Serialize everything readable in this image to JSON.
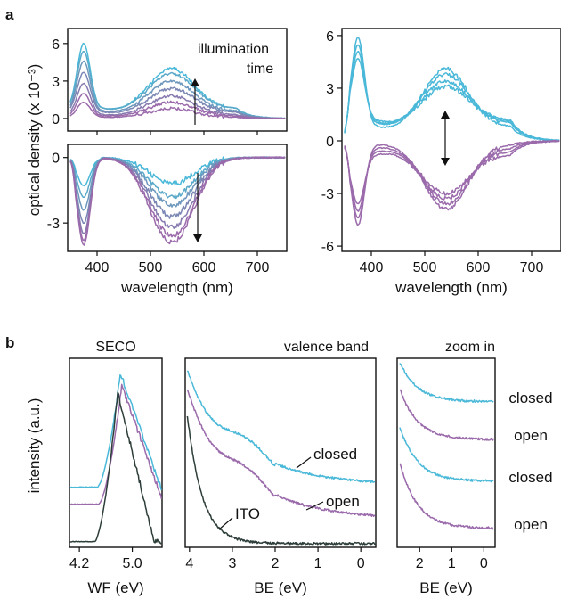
{
  "panel_labels": {
    "a": "a",
    "b": "b"
  },
  "colors": {
    "cyan": "#4ab8d8",
    "purple": "#9a6aab",
    "dark": "#2d3e3a",
    "mix": [
      "#4ab8d8",
      "#5aa9c9",
      "#6d97bc",
      "#7a86b4",
      "#877aaf",
      "#9a6aab"
    ]
  },
  "chart_data": [
    {
      "id": "a-top-left",
      "type": "line",
      "ylabel": "optical density (x 10⁻³)",
      "xlabel": "",
      "xlim": [
        345,
        755
      ],
      "ylim": [
        -1.0,
        7.2
      ],
      "xticks": [
        400,
        500,
        600,
        700
      ],
      "yticks": [
        0,
        3,
        6
      ],
      "annotation": {
        "line1": "illumination",
        "line2": "time",
        "arrow": "up"
      },
      "series": [
        {
          "peak": 6.0,
          "band": 4.0,
          "base": 0.8
        },
        {
          "peak": 5.4,
          "band": 3.6,
          "base": 0.8
        },
        {
          "peak": 4.6,
          "band": 3.0,
          "base": 0.6
        },
        {
          "peak": 3.7,
          "band": 2.4,
          "base": 0.5
        },
        {
          "peak": 2.8,
          "band": 1.8,
          "base": 0.3
        },
        {
          "peak": 2.0,
          "band": 1.3,
          "base": 0.2
        },
        {
          "peak": 1.3,
          "band": 0.8,
          "base": 0.1
        }
      ]
    },
    {
      "id": "a-bottom-left",
      "type": "line",
      "ylabel": "",
      "xlabel": "wavelength (nm)",
      "xlim": [
        345,
        755
      ],
      "ylim": [
        -4.3,
        0.6
      ],
      "xticks": [
        400,
        500,
        600,
        700
      ],
      "yticks": [
        0,
        -3
      ],
      "xticklabels": [
        "400",
        "500",
        "600",
        "700"
      ],
      "yticklabels": [
        "0",
        "-3"
      ],
      "annotation": {
        "arrow": "down"
      },
      "series": [
        {
          "peak": -1.3,
          "band": -1.2
        },
        {
          "peak": -1.8,
          "band": -1.8
        },
        {
          "peak": -2.4,
          "band": -2.2
        },
        {
          "peak": -3.0,
          "band": -2.7
        },
        {
          "peak": -3.5,
          "band": -3.2
        },
        {
          "peak": -3.8,
          "band": -3.6
        },
        {
          "peak": -4.0,
          "band": -3.9
        }
      ]
    },
    {
      "id": "a-right",
      "type": "line",
      "ylabel": "",
      "xlabel": "wavelength (nm)",
      "xlim": [
        345,
        755
      ],
      "ylim": [
        -6.3,
        6.4
      ],
      "xticks": [
        400,
        500,
        600,
        700
      ],
      "yticks": [
        6,
        3,
        0,
        -3,
        -6
      ],
      "xticklabels": [
        "400",
        "500",
        "600",
        "700"
      ],
      "yticklabels": [
        "6",
        "3",
        "0",
        "-3",
        "-6"
      ],
      "annotation": {
        "arrow": "double"
      },
      "series": [
        {
          "color": "cyan",
          "peak": 5.9,
          "band": 4.1,
          "base": 0.8
        },
        {
          "color": "cyan",
          "peak": 5.5,
          "band": 3.8,
          "base": 1.0
        },
        {
          "color": "cyan",
          "peak": 5.1,
          "band": 3.4,
          "base": 1.1
        },
        {
          "color": "cyan",
          "peak": 4.7,
          "band": 3.1,
          "base": 1.2
        },
        {
          "color": "purple",
          "peak": -4.8,
          "band": -3.9,
          "base": -0.2
        },
        {
          "color": "purple",
          "peak": -4.4,
          "band": -3.6,
          "base": -0.4
        },
        {
          "color": "purple",
          "peak": -4.0,
          "band": -3.3,
          "base": -0.6
        },
        {
          "color": "purple",
          "peak": -3.6,
          "band": -3.0,
          "base": -0.8
        }
      ]
    },
    {
      "id": "b-seco",
      "type": "line",
      "title": "SECO",
      "ylabel": "intensity (a.u.)",
      "xlabel": "WF (eV)",
      "xlim": [
        4.05,
        5.45
      ],
      "ylim": [
        0,
        1
      ],
      "xticks": [
        4.2,
        5.0
      ],
      "xticklabels": [
        "4.2",
        "5.0"
      ],
      "series": [
        {
          "color": "cyan",
          "base": 0.32,
          "edge": 4.82,
          "top": 0.99
        },
        {
          "color": "purple",
          "base": 0.22,
          "edge": 4.84,
          "top": 0.92
        },
        {
          "color": "dark",
          "base": 0.0,
          "edge": 4.78,
          "top": 0.88
        }
      ]
    },
    {
      "id": "b-valence",
      "type": "line",
      "title": "valence band",
      "xlabel": "BE (eV)",
      "xlim": [
        4.1,
        -0.35
      ],
      "ylim": [
        0,
        1
      ],
      "xticks": [
        4,
        3,
        2,
        1,
        0
      ],
      "xticklabels": [
        "4",
        "3",
        "2",
        "1",
        "0"
      ],
      "labels": {
        "closed": "closed",
        "open": "open",
        "ito": "ITO"
      },
      "series": [
        {
          "color": "cyan",
          "start": 0.96,
          "end": 0.33
        },
        {
          "color": "purple",
          "start": 0.86,
          "end": 0.15
        },
        {
          "color": "dark",
          "start": 0.7,
          "end": 0.02
        }
      ]
    },
    {
      "id": "b-zoom",
      "type": "line",
      "title": "zoom in",
      "xlabel": "BE (eV)",
      "xlim": [
        2.7,
        -0.35
      ],
      "ylim": [
        0,
        1
      ],
      "xticks": [
        2,
        1,
        0
      ],
      "xticklabels": [
        "2",
        "1",
        "0"
      ],
      "series": [
        {
          "color": "cyan",
          "name": "closed",
          "start": 0.98,
          "end": 0.77
        },
        {
          "color": "purple",
          "name": "open",
          "start": 0.84,
          "end": 0.57
        },
        {
          "color": "cyan",
          "name": "closed",
          "start": 0.64,
          "end": 0.35
        },
        {
          "color": "purple",
          "name": "open",
          "start": 0.45,
          "end": 0.1
        }
      ]
    }
  ]
}
